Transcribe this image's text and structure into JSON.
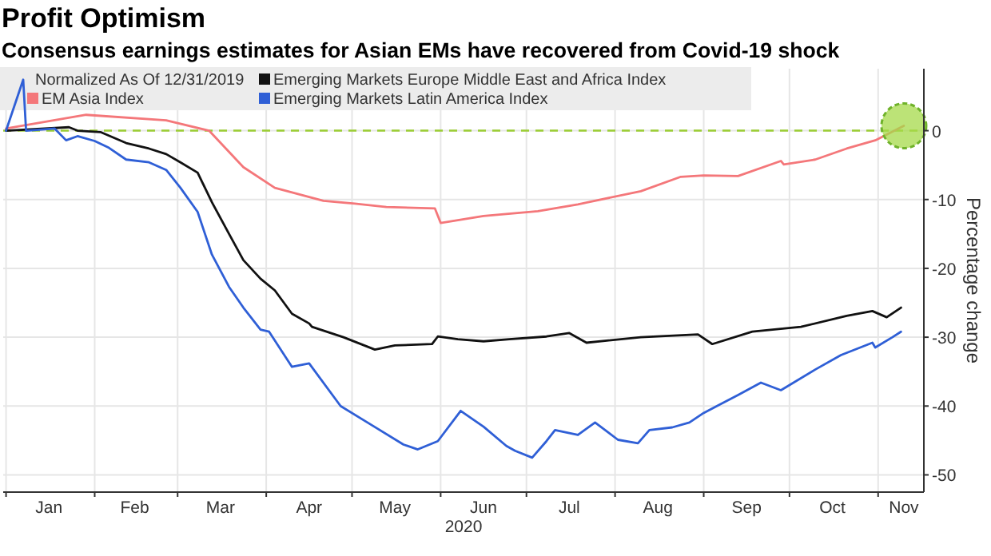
{
  "chart_data": {
    "type": "line",
    "title": "Profit Optimism",
    "subtitle": "Consensus earnings estimates for Asian EMs have recovered from Covid-19 shock",
    "xlabel": "2020",
    "ylabel": "Percentage change",
    "legend_title": "Normalized As Of 12/31/2019",
    "legend": "top left",
    "grid": true,
    "line_style": "solid",
    "marker": "none",
    "xlim": [
      "2019-12-31",
      "2020-11-17"
    ],
    "xticks": [
      {
        "value": "2020-01-01",
        "label": null
      },
      {
        "value": "2020-02-01",
        "label": null
      },
      {
        "value": "2020-03-01",
        "label": null
      },
      {
        "value": "2020-04-01",
        "label": null
      },
      {
        "value": "2020-05-01",
        "label": null
      },
      {
        "value": "2020-06-01",
        "label": null
      },
      {
        "value": "2020-07-01",
        "label": null
      },
      {
        "value": "2020-08-01",
        "label": null
      },
      {
        "value": "2020-09-01",
        "label": null
      },
      {
        "value": "2020-10-01",
        "label": null
      },
      {
        "value": "2020-11-01",
        "label": null
      },
      {
        "value": "2020-01-16",
        "label": "Jan"
      },
      {
        "value": "2020-02-15",
        "label": "Feb"
      },
      {
        "value": "2020-03-16",
        "label": "Mar"
      },
      {
        "value": "2020-04-16",
        "label": "Apr"
      },
      {
        "value": "2020-05-16",
        "label": "May"
      },
      {
        "value": "2020-06-16",
        "label": "Jun"
      },
      {
        "value": "2020-07-16",
        "label": "Jul"
      },
      {
        "value": "2020-08-16",
        "label": "Aug"
      },
      {
        "value": "2020-09-16",
        "label": "Sep"
      },
      {
        "value": "2020-10-16",
        "label": "Oct"
      },
      {
        "value": "2020-11-10",
        "label": "Nov"
      }
    ],
    "ylim": [
      -52.5,
      9
    ],
    "yticks": [
      -50,
      -40,
      -30,
      -20,
      -10,
      0
    ],
    "ref_lines": [
      {
        "axis": "y",
        "value": 0,
        "color": "#9acd32",
        "line_style": "dashed"
      }
    ],
    "series": [
      {
        "name": "EM Asia Index",
        "color": "#f4777a",
        "x": [
          "2020-01-01",
          "2020-01-29",
          "2020-02-26",
          "2020-03-12",
          "2020-03-24",
          "2020-04-04",
          "2020-04-21",
          "2020-05-02",
          "2020-05-13",
          "2020-05-30",
          "2020-06-01",
          "2020-06-16",
          "2020-07-05",
          "2020-07-19",
          "2020-08-10",
          "2020-08-24",
          "2020-09-01",
          "2020-09-13",
          "2020-09-28",
          "2020-09-29",
          "2020-10-10",
          "2020-10-21",
          "2020-10-31",
          "2020-11-10"
        ],
        "values": [
          0.3,
          2.3,
          1.5,
          0,
          -5.3,
          -8.3,
          -10.2,
          -10.6,
          -11.1,
          -11.3,
          -13.4,
          -12.4,
          -11.7,
          -10.7,
          -8.8,
          -6.7,
          -6.5,
          -6.6,
          -4.4,
          -4.9,
          -4.2,
          -2.6,
          -1.4,
          0.7
        ]
      },
      {
        "name": "Emerging Markets Europe Middle East and Africa Index",
        "color": "#111111",
        "x": [
          "2020-01-01",
          "2020-01-23",
          "2020-01-26",
          "2020-02-03",
          "2020-02-12",
          "2020-02-20",
          "2020-02-26",
          "2020-03-02",
          "2020-03-08",
          "2020-03-13",
          "2020-03-19",
          "2020-03-24",
          "2020-03-30",
          "2020-04-04",
          "2020-04-10",
          "2020-04-16",
          "2020-04-17",
          "2020-04-28",
          "2020-05-09",
          "2020-05-16",
          "2020-05-29",
          "2020-05-31",
          "2020-06-07",
          "2020-06-16",
          "2020-06-25",
          "2020-07-08",
          "2020-07-16",
          "2020-07-22",
          "2020-08-10",
          "2020-08-30",
          "2020-09-04",
          "2020-09-18",
          "2020-10-05",
          "2020-10-21",
          "2020-10-30",
          "2020-11-04",
          "2020-11-09"
        ],
        "values": [
          0,
          0.5,
          0,
          -0.2,
          -1.8,
          -2.6,
          -3.4,
          -4.6,
          -6.1,
          -10.4,
          -15,
          -18.8,
          -21.5,
          -23.2,
          -26.6,
          -28,
          -28.5,
          -30,
          -31.8,
          -31.2,
          -31,
          -29.9,
          -30.3,
          -30.6,
          -30.3,
          -29.9,
          -29.4,
          -30.8,
          -30,
          -29.6,
          -31,
          -29.2,
          -28.5,
          -26.9,
          -26.2,
          -27.1,
          -25.7
        ]
      },
      {
        "name": "Emerging Markets Latin America Index",
        "color": "#2f5fd6",
        "x": [
          "2020-01-01",
          "2020-01-07",
          "2020-01-08",
          "2020-01-18",
          "2020-01-22",
          "2020-01-26",
          "2020-02-01",
          "2020-02-06",
          "2020-02-12",
          "2020-02-20",
          "2020-02-26",
          "2020-03-02",
          "2020-03-08",
          "2020-03-13",
          "2020-03-19",
          "2020-03-24",
          "2020-03-30",
          "2020-04-02",
          "2020-04-10",
          "2020-04-16",
          "2020-04-27",
          "2020-05-08",
          "2020-05-19",
          "2020-05-24",
          "2020-05-31",
          "2020-06-08",
          "2020-06-16",
          "2020-06-24",
          "2020-06-27",
          "2020-07-03",
          "2020-07-08",
          "2020-07-11",
          "2020-07-19",
          "2020-07-25",
          "2020-08-02",
          "2020-08-09",
          "2020-08-13",
          "2020-08-21",
          "2020-08-27",
          "2020-09-01",
          "2020-09-13",
          "2020-09-21",
          "2020-09-28",
          "2020-10-10",
          "2020-10-19",
          "2020-10-30",
          "2020-10-31",
          "2020-11-06",
          "2020-11-09"
        ],
        "values": [
          0,
          7.4,
          0,
          0.3,
          -1.4,
          -0.8,
          -1.5,
          -2.5,
          -4.2,
          -4.6,
          -5.7,
          -8.3,
          -11.8,
          -18,
          -22.7,
          -25.7,
          -28.9,
          -29.2,
          -34.3,
          -33.8,
          -40,
          -42.8,
          -45.6,
          -46.3,
          -45.1,
          -40.7,
          -43,
          -45.8,
          -46.5,
          -47.5,
          -45.1,
          -43.5,
          -44.2,
          -42.4,
          -44.9,
          -45.4,
          -43.5,
          -43.1,
          -42.4,
          -41,
          -38.4,
          -36.6,
          -37.7,
          -34.7,
          -32.6,
          -30.8,
          -31.5,
          -30,
          -29.2
        ]
      }
    ]
  }
}
